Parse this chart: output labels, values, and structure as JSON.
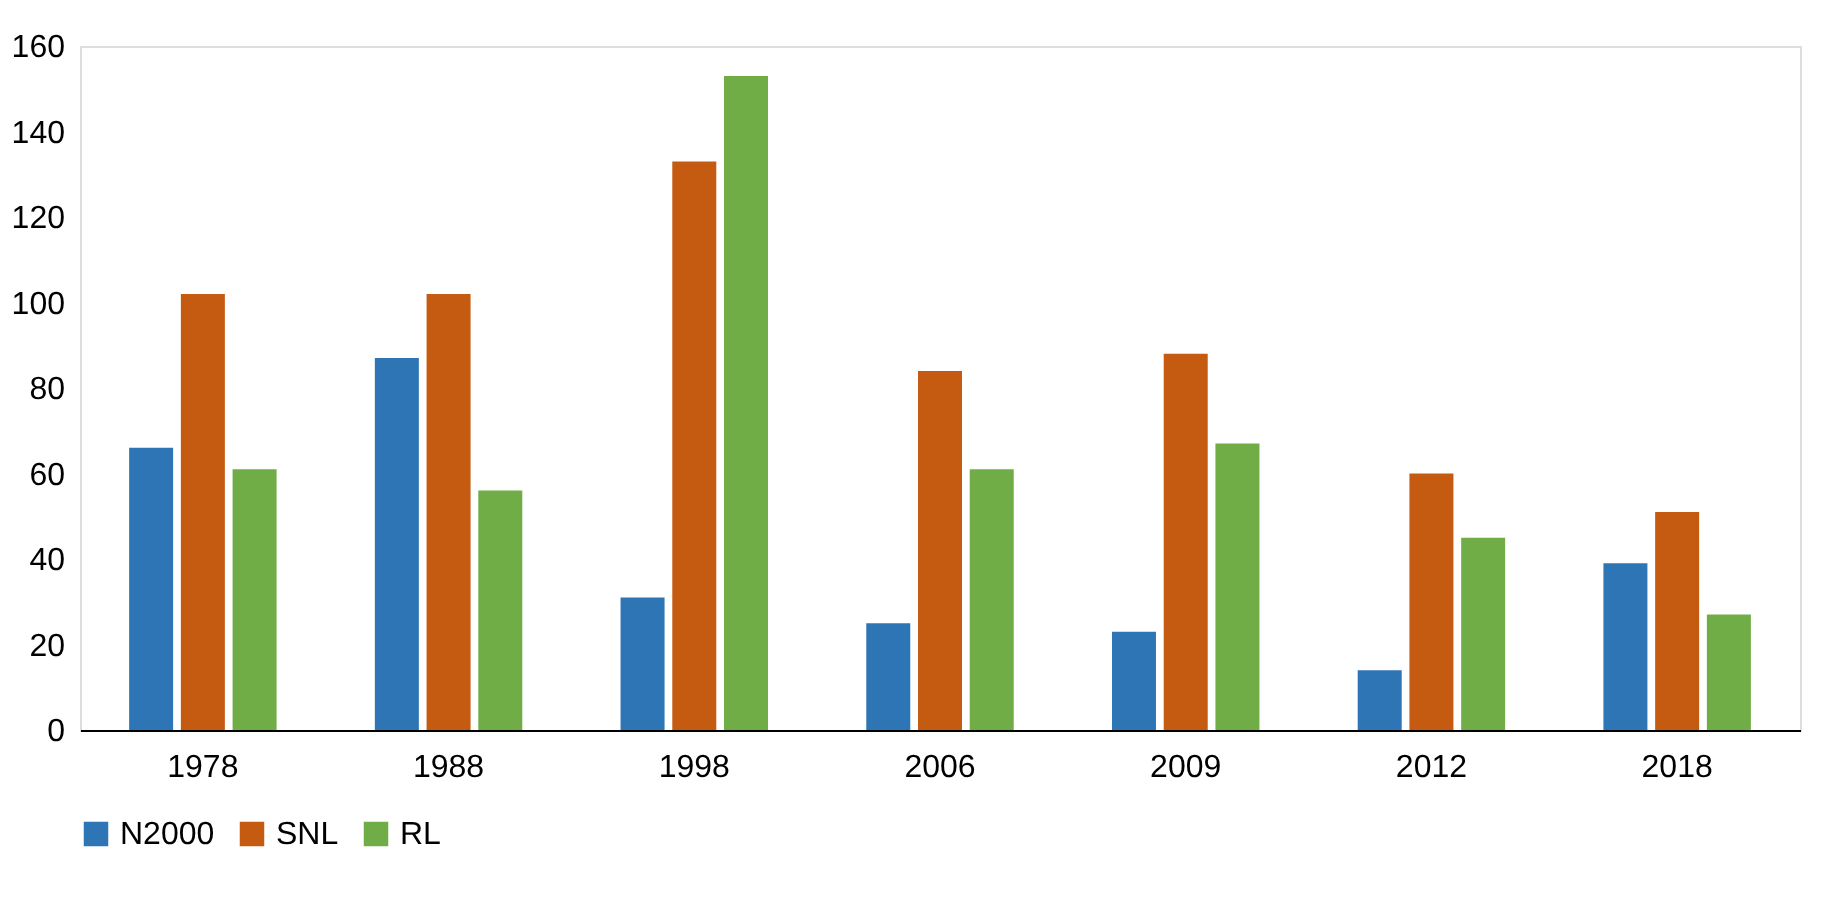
{
  "chart_data": {
    "type": "bar",
    "categories": [
      "1978",
      "1988",
      "1998",
      "2006",
      "2009",
      "2012",
      "2018"
    ],
    "series": [
      {
        "name": "N2000",
        "color": "#2e75b6",
        "values": [
          66,
          87,
          31,
          25,
          23,
          14,
          39
        ]
      },
      {
        "name": "SNL",
        "color": "#c55a11",
        "values": [
          102,
          102,
          133,
          84,
          88,
          60,
          51
        ]
      },
      {
        "name": "RL",
        "color": "#70ad47",
        "values": [
          61,
          56,
          153,
          61,
          67,
          45,
          27
        ]
      }
    ],
    "ylim": [
      0,
      160
    ],
    "yticks": [
      0,
      20,
      40,
      60,
      80,
      100,
      120,
      140,
      160
    ],
    "grid": false,
    "legend": "bottom"
  }
}
